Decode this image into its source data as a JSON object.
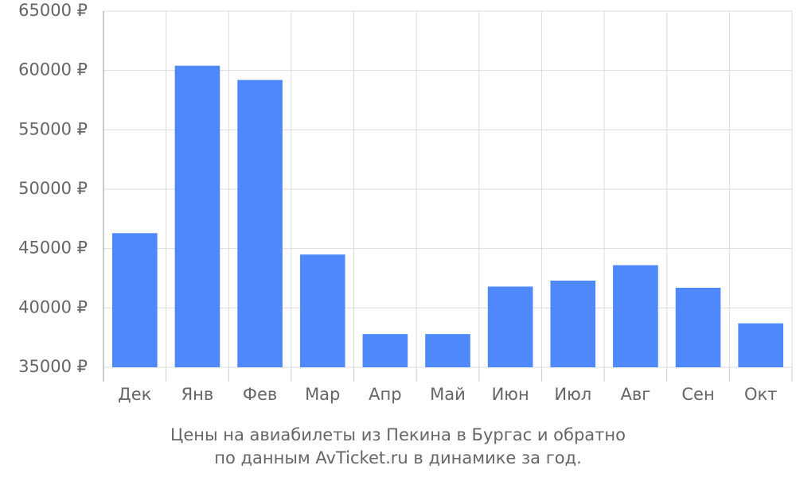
{
  "chart_data": {
    "type": "bar",
    "title_lines": [
      "Цены на авиабилеты из Пекина в Бургас и обратно",
      "по данным AvTicket.ru в динамике за год."
    ],
    "categories": [
      "Дек",
      "Янв",
      "Фев",
      "Мар",
      "Апр",
      "Май",
      "Июн",
      "Июл",
      "Авг",
      "Сен",
      "Окт"
    ],
    "values": [
      46300,
      60400,
      59200,
      44500,
      37800,
      37800,
      41800,
      42300,
      43600,
      41700,
      38700
    ],
    "color": "#4e88fb",
    "ylim": [
      35000,
      65000
    ],
    "yticks": [
      {
        "value": 35000,
        "label": "35000 ₽"
      },
      {
        "value": 40000,
        "label": "40000 ₽"
      },
      {
        "value": 45000,
        "label": "45000 ₽"
      },
      {
        "value": 50000,
        "label": "50000 ₽"
      },
      {
        "value": 55000,
        "label": "55000 ₽"
      },
      {
        "value": 60000,
        "label": "60000 ₽"
      },
      {
        "value": 65000,
        "label": "65000 ₽"
      }
    ],
    "grid": true
  }
}
